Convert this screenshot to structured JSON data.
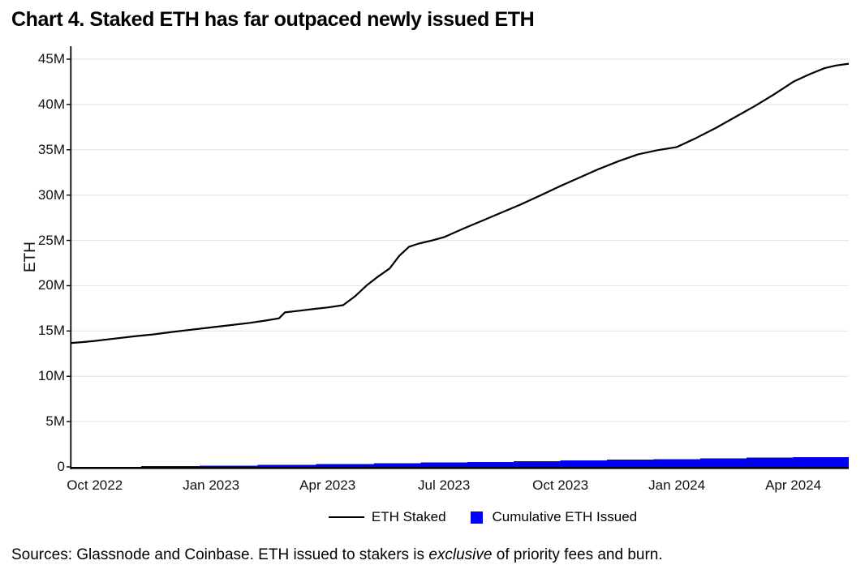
{
  "title": "Chart 4. Staked ETH has far outpaced newly issued ETH",
  "y_axis": {
    "label": "ETH",
    "ticks": [
      "0",
      "5M",
      "10M",
      "15M",
      "20M",
      "25M",
      "30M",
      "35M",
      "40M",
      "45M"
    ]
  },
  "x_axis": {
    "ticks": [
      "Oct 2022",
      "Jan 2023",
      "Apr 2023",
      "Jul 2023",
      "Oct 2023",
      "Jan 2024",
      "Apr 2024"
    ]
  },
  "legend": [
    {
      "label": "ETH Staked",
      "swatch": "line",
      "color": "#000000"
    },
    {
      "label": "Cumulative ETH Issued",
      "swatch": "square",
      "color": "#0000ff"
    }
  ],
  "source": {
    "prefix": "Sources: Glassnode and Coinbase. ETH issued to stakers is ",
    "italic": "exclusive",
    "suffix": " of priority fees and burn."
  },
  "colors": {
    "staked_line": "#000000",
    "issued_fill": "#0000f2",
    "grid": "#e7e7e7",
    "axis": "#000000",
    "background": "#ffffff"
  },
  "chart_data": {
    "type": "line",
    "title": "Chart 4. Staked ETH has far outpaced newly issued ETH",
    "xlabel": "",
    "ylabel": "ETH",
    "x_unit": "months since Oct 1 2022 (data starts ~Sep 15 2022, ends ~mid-May 2024)",
    "value_unit": "millions of ETH",
    "xlim": [
      -0.6,
      19.43
    ],
    "ylim": [
      0,
      45
    ],
    "x_tick_months": [
      0,
      3,
      6,
      9,
      12,
      15,
      18
    ],
    "grid": "horizontal",
    "legend_position": "bottom",
    "series": [
      {
        "name": "ETH Staked",
        "type": "line",
        "points": [
          [
            -0.6,
            13.68
          ],
          [
            -0.3,
            13.78
          ],
          [
            0,
            13.9
          ],
          [
            0.5,
            14.15
          ],
          [
            1,
            14.4
          ],
          [
            1.5,
            14.62
          ],
          [
            2,
            14.9
          ],
          [
            2.5,
            15.15
          ],
          [
            3,
            15.4
          ],
          [
            3.5,
            15.65
          ],
          [
            4,
            15.9
          ],
          [
            4.4,
            16.15
          ],
          [
            4.75,
            16.4
          ],
          [
            4.9,
            17.05
          ],
          [
            5.3,
            17.25
          ],
          [
            5.7,
            17.45
          ],
          [
            6,
            17.6
          ],
          [
            6.4,
            17.85
          ],
          [
            6.7,
            18.8
          ],
          [
            7,
            20.0
          ],
          [
            7.3,
            21.0
          ],
          [
            7.6,
            21.9
          ],
          [
            7.85,
            23.3
          ],
          [
            8.1,
            24.3
          ],
          [
            8.35,
            24.65
          ],
          [
            8.7,
            25.0
          ],
          [
            9,
            25.35
          ],
          [
            9.5,
            26.3
          ],
          [
            10,
            27.2
          ],
          [
            10.5,
            28.1
          ],
          [
            11,
            29.0
          ],
          [
            11.5,
            30.0
          ],
          [
            12,
            31.0
          ],
          [
            12.5,
            31.95
          ],
          [
            13,
            32.9
          ],
          [
            13.5,
            33.75
          ],
          [
            14,
            34.5
          ],
          [
            14.5,
            34.95
          ],
          [
            15,
            35.3
          ],
          [
            15.5,
            36.3
          ],
          [
            16,
            37.4
          ],
          [
            16.5,
            38.6
          ],
          [
            17,
            39.8
          ],
          [
            17.5,
            41.1
          ],
          [
            18,
            42.5
          ],
          [
            18.4,
            43.3
          ],
          [
            18.8,
            44.0
          ],
          [
            19.1,
            44.3
          ],
          [
            19.43,
            44.5
          ]
        ]
      },
      {
        "name": "Cumulative ETH Issued",
        "type": "step-area",
        "points": [
          [
            -0.6,
            0.0
          ],
          [
            1.2,
            0.07
          ],
          [
            2.7,
            0.15
          ],
          [
            4.2,
            0.23
          ],
          [
            5.7,
            0.32
          ],
          [
            7.2,
            0.41
          ],
          [
            8.4,
            0.48
          ],
          [
            9.6,
            0.55
          ],
          [
            10.8,
            0.63
          ],
          [
            12.0,
            0.71
          ],
          [
            13.2,
            0.79
          ],
          [
            14.4,
            0.87
          ],
          [
            15.6,
            0.94
          ],
          [
            16.8,
            1.01
          ],
          [
            18.0,
            1.07
          ],
          [
            19.43,
            1.12
          ]
        ]
      }
    ]
  }
}
